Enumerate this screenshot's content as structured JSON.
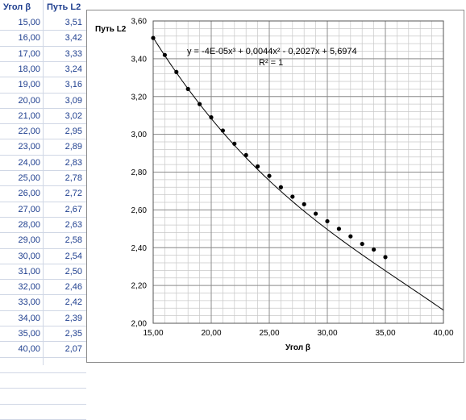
{
  "sheet": {
    "col_a_header": "Угол β",
    "col_b_header": "Путь L2",
    "rows": [
      {
        "angle": "15,00",
        "path": "3,51"
      },
      {
        "angle": "16,00",
        "path": "3,42"
      },
      {
        "angle": "17,00",
        "path": "3,33"
      },
      {
        "angle": "18,00",
        "path": "3,24"
      },
      {
        "angle": "19,00",
        "path": "3,16"
      },
      {
        "angle": "20,00",
        "path": "3,09"
      },
      {
        "angle": "21,00",
        "path": "3,02"
      },
      {
        "angle": "22,00",
        "path": "2,95"
      },
      {
        "angle": "23,00",
        "path": "2,89"
      },
      {
        "angle": "24,00",
        "path": "2,83"
      },
      {
        "angle": "25,00",
        "path": "2,78"
      },
      {
        "angle": "26,00",
        "path": "2,72"
      },
      {
        "angle": "27,00",
        "path": "2,67"
      },
      {
        "angle": "28,00",
        "path": "2,63"
      },
      {
        "angle": "29,00",
        "path": "2,58"
      },
      {
        "angle": "30,00",
        "path": "2,54"
      },
      {
        "angle": "31,00",
        "path": "2,50"
      },
      {
        "angle": "32,00",
        "path": "2,46"
      },
      {
        "angle": "33,00",
        "path": "2,42"
      },
      {
        "angle": "34,00",
        "path": "2,39"
      },
      {
        "angle": "35,00",
        "path": "2,35"
      },
      {
        "angle": "40,00",
        "path": "2,07"
      }
    ],
    "empty_rows": 4,
    "text_color": "#1f3f8f",
    "grid_color": "#d0d7e5"
  },
  "chart_data": {
    "type": "scatter",
    "xlabel": "Угол β",
    "ylabel": "Путь L2",
    "xlim": [
      15,
      40
    ],
    "ylim": [
      2.0,
      3.6
    ],
    "x_ticks": [
      15,
      20,
      25,
      30,
      35,
      40
    ],
    "x_tick_labels": [
      "15,00",
      "20,00",
      "25,00",
      "30,00",
      "35,00",
      "40,00"
    ],
    "y_ticks": [
      2.0,
      2.2,
      2.4,
      2.6,
      2.8,
      3.0,
      3.2,
      3.4,
      3.6
    ],
    "y_tick_labels": [
      "2,00",
      "2,20",
      "2,40",
      "2,60",
      "2,80",
      "3,00",
      "3,20",
      "3,40",
      "3,60"
    ],
    "grid": true,
    "minor_grid": true,
    "series": [
      {
        "x": [
          15,
          16,
          17,
          18,
          19,
          20,
          21,
          22,
          23,
          24,
          25,
          26,
          27,
          28,
          29,
          30,
          31,
          32,
          33,
          34,
          35,
          40
        ],
        "y": [
          3.51,
          3.42,
          3.33,
          3.24,
          3.16,
          3.09,
          3.02,
          2.95,
          2.89,
          2.83,
          2.78,
          2.72,
          2.67,
          2.63,
          2.58,
          2.54,
          2.5,
          2.46,
          2.42,
          2.39,
          2.35,
          2.07
        ]
      }
    ],
    "trendline": {
      "type": "polynomial",
      "coefficients": [
        -4e-05,
        0.0044,
        -0.2027,
        5.6974
      ],
      "equation": "y = -4E-05x³ + 0,0044x² - 0,2027x + 5,6974",
      "r_squared": "R² = 1"
    }
  }
}
